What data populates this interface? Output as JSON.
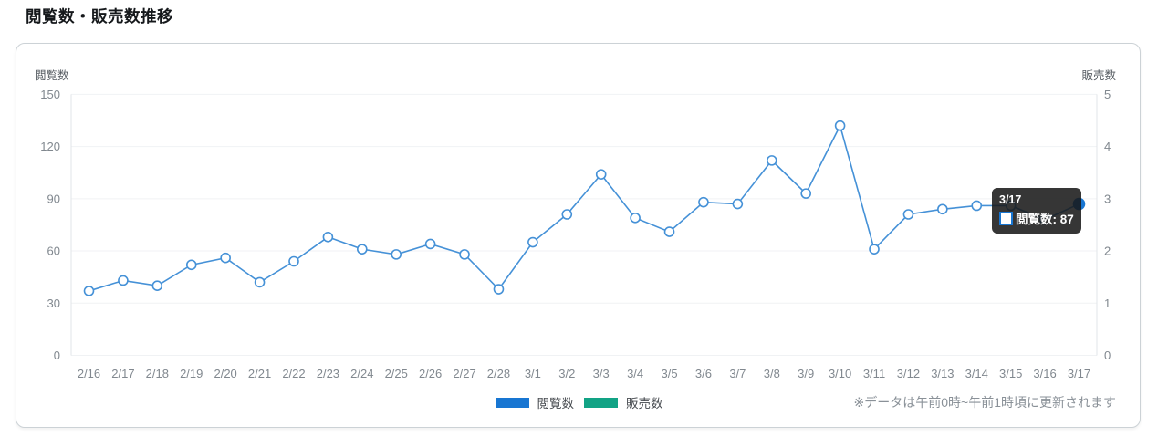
{
  "page": {
    "title": "閲覧数・販売数推移"
  },
  "chart_data": {
    "type": "line",
    "title": "閲覧数・販売数推移",
    "x": [
      "2/16",
      "2/17",
      "2/18",
      "2/19",
      "2/20",
      "2/21",
      "2/22",
      "2/23",
      "2/24",
      "2/25",
      "2/26",
      "2/27",
      "2/28",
      "3/1",
      "3/2",
      "3/3",
      "3/4",
      "3/5",
      "3/6",
      "3/7",
      "3/8",
      "3/9",
      "3/10",
      "3/11",
      "3/12",
      "3/13",
      "3/14",
      "3/15",
      "3/16",
      "3/17"
    ],
    "series": [
      {
        "name": "閲覧数",
        "yaxis": "left",
        "color": "#1876d2",
        "line_color": "#4591d7",
        "values": [
          37,
          43,
          40,
          52,
          56,
          42,
          54,
          68,
          61,
          58,
          64,
          58,
          38,
          65,
          81,
          104,
          79,
          71,
          88,
          87,
          112,
          93,
          132,
          61,
          81,
          84,
          86,
          86,
          78,
          87
        ]
      },
      {
        "name": "販売数",
        "yaxis": "right",
        "color": "#12a385",
        "values": []
      }
    ],
    "left_axis": {
      "title": "閲覧数",
      "ticks": [
        0,
        30,
        60,
        90,
        120,
        150
      ],
      "min": 0,
      "max": 150
    },
    "right_axis": {
      "title": "販売数",
      "ticks": [
        0,
        1,
        2,
        3,
        4,
        5
      ],
      "min": 0,
      "max": 5
    },
    "grid": true,
    "legend_position": "bottom",
    "highlight_index": 29
  },
  "legend": {
    "items": [
      {
        "label": "閲覧数",
        "color": "#1876d2"
      },
      {
        "label": "販売数",
        "color": "#12a385"
      }
    ]
  },
  "tooltip": {
    "date": "3/17",
    "series": "閲覧数",
    "value": 87,
    "text": "閲覧数: 87"
  },
  "footnote": "※データは午前0時~午前1時頃に更新されます"
}
